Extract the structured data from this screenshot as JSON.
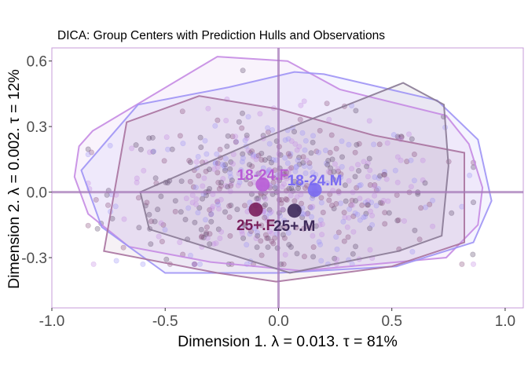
{
  "chart_data": {
    "type": "scatter",
    "title": "DICA: Group Centers with Prediction Hulls and Observations",
    "xlabel": "Dimension 1.   λ = 0.013.  τ = 81%",
    "ylabel": "Dimension 2.   λ = 0.002.  τ = 12%",
    "xlim": [
      -1.0,
      1.08
    ],
    "ylim": [
      -0.53,
      0.66
    ],
    "x_ticks": [
      -1.0,
      -0.5,
      0.0,
      0.5,
      1.0
    ],
    "x_tick_labels": [
      "-1.0",
      "-0.5",
      "0.0",
      "0.5",
      "1.0"
    ],
    "y_ticks": [
      -0.3,
      0.0,
      0.3,
      0.6
    ],
    "y_tick_labels": [
      "-0.3",
      "0.0",
      "0.3",
      "0.6"
    ],
    "grid": false,
    "origin_lines": true,
    "group_centers": [
      {
        "name": "18-24.F",
        "x": -0.07,
        "y": 0.035,
        "color": "#B85CD6"
      },
      {
        "name": "18-24.M",
        "x": 0.16,
        "y": 0.01,
        "color": "#7B6CF2"
      },
      {
        "name": "25+.F",
        "x": -0.1,
        "y": -0.08,
        "color": "#7A1F5C"
      },
      {
        "name": "25+.M",
        "x": 0.07,
        "y": -0.085,
        "color": "#3E2A5A"
      }
    ],
    "hulls": [
      {
        "group": "18-24.F",
        "color": "#C58BE3",
        "points": [
          [
            -0.27,
            0.62
          ],
          [
            0.04,
            0.6
          ],
          [
            0.27,
            0.47
          ],
          [
            0.74,
            0.35
          ],
          [
            0.84,
            0.22
          ],
          [
            0.9,
            0.02
          ],
          [
            0.88,
            -0.15
          ],
          [
            0.74,
            -0.3
          ],
          [
            0.1,
            -0.36
          ],
          [
            -0.3,
            -0.32
          ],
          [
            -0.66,
            -0.25
          ],
          [
            -0.84,
            -0.1
          ],
          [
            -0.9,
            0.07
          ],
          [
            -0.88,
            0.21
          ],
          [
            -0.82,
            0.28
          ]
        ]
      },
      {
        "group": "18-24.M",
        "color": "#9F94F5",
        "points": [
          [
            -0.22,
            0.48
          ],
          [
            0.07,
            0.55
          ],
          [
            0.2,
            0.54
          ],
          [
            0.7,
            0.42
          ],
          [
            0.88,
            0.24
          ],
          [
            0.94,
            -0.04
          ],
          [
            0.86,
            -0.23
          ],
          [
            0.52,
            -0.34
          ],
          [
            0.0,
            -0.37
          ],
          [
            -0.5,
            -0.37
          ],
          [
            -0.78,
            -0.16
          ],
          [
            -0.87,
            0.1
          ],
          [
            -0.62,
            0.4
          ]
        ]
      },
      {
        "group": "25+.F",
        "color": "#A8729E",
        "points": [
          [
            -0.35,
            0.44
          ],
          [
            0.0,
            0.38
          ],
          [
            0.42,
            0.26
          ],
          [
            0.82,
            0.18
          ],
          [
            0.82,
            -0.23
          ],
          [
            0.5,
            -0.34
          ],
          [
            -0.01,
            -0.41
          ],
          [
            -0.27,
            -0.37
          ],
          [
            -0.77,
            -0.27
          ],
          [
            -0.67,
            0.32
          ]
        ]
      },
      {
        "group": "25+.M",
        "color": "#8A7A95",
        "points": [
          [
            -0.06,
            0.25
          ],
          [
            0.55,
            0.5
          ],
          [
            0.73,
            0.4
          ],
          [
            0.75,
            0.12
          ],
          [
            0.72,
            -0.2
          ],
          [
            0.53,
            -0.27
          ],
          [
            0.05,
            -0.37
          ],
          [
            -0.57,
            -0.17
          ],
          [
            -0.61,
            0.0
          ]
        ]
      }
    ],
    "observation_colors": [
      "#C58BE3",
      "#9F94F5",
      "#8A4F7D",
      "#5E4A6E"
    ]
  }
}
